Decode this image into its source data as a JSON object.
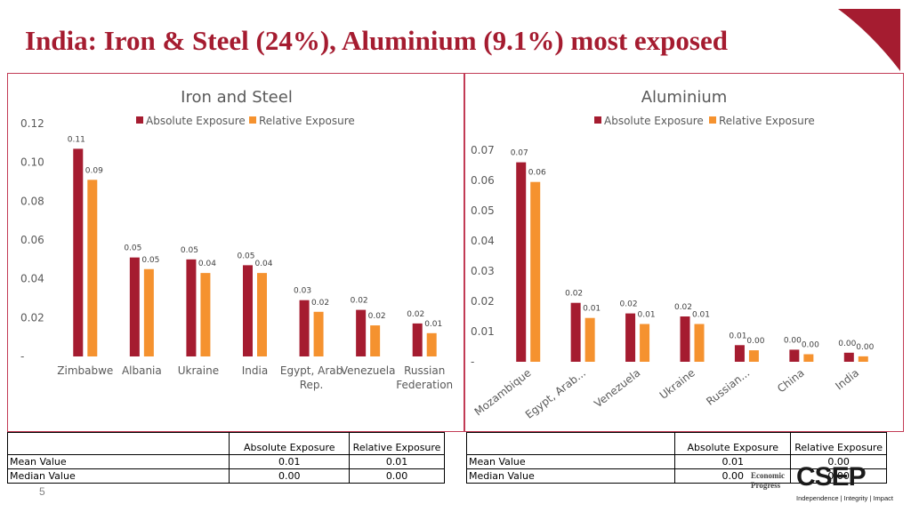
{
  "title": "India: Iron & Steel (24%), Aluminium (9.1%) most exposed",
  "page_number": "5",
  "colors": {
    "absolute": "#a51c30",
    "relative": "#f5922f",
    "title": "#a51c30"
  },
  "chart_data": [
    {
      "type": "bar",
      "title": "Iron and Steel",
      "categories": [
        [
          "Zimbabwe"
        ],
        [
          "Albania"
        ],
        [
          "Ukraine"
        ],
        [
          "India"
        ],
        [
          "Egypt, Arab",
          "Rep."
        ],
        [
          "Venezuela"
        ],
        [
          "Russian",
          "Federation"
        ]
      ],
      "series": [
        {
          "name": "Absolute Exposure",
          "values": [
            0.107,
            0.051,
            0.05,
            0.047,
            0.029,
            0.024,
            0.017
          ],
          "labels": [
            "0.11",
            "0.05",
            "0.05",
            "0.05",
            "0.03",
            "0.02",
            "0.02"
          ]
        },
        {
          "name": "Relative Exposure",
          "values": [
            0.091,
            0.045,
            0.043,
            0.043,
            0.023,
            0.016,
            0.012
          ],
          "labels": [
            "0.09",
            "0.05",
            "0.04",
            "0.04",
            "0.02",
            "0.02",
            "0.01"
          ]
        }
      ],
      "yticks": [
        "-",
        "0.02",
        "0.04",
        "0.06",
        "0.08",
        "0.10",
        "0.12"
      ],
      "ylim": [
        0,
        0.12
      ]
    },
    {
      "type": "bar",
      "title": "Aluminium",
      "categories": [
        "Mozambique",
        "Egypt, Arab...",
        "Venezuela",
        "Ukraine",
        "Russian...",
        "China",
        "India"
      ],
      "series": [
        {
          "name": "Absolute Exposure",
          "values": [
            0.066,
            0.0195,
            0.016,
            0.015,
            0.0055,
            0.004,
            0.003
          ],
          "labels": [
            "0.07",
            "0.02",
            "0.02",
            "0.02",
            "0.01",
            "0.00",
            "0.00"
          ]
        },
        {
          "name": "Relative Exposure",
          "values": [
            0.0595,
            0.0145,
            0.0125,
            0.0125,
            0.0038,
            0.0025,
            0.0018
          ],
          "labels": [
            "0.06",
            "0.01",
            "0.01",
            "0.01",
            "0.00",
            "0.00",
            "0.00"
          ]
        }
      ],
      "yticks": [
        "-",
        "0.01",
        "0.02",
        "0.03",
        "0.04",
        "0.05",
        "0.06",
        "0.07"
      ],
      "ylim": [
        0,
        0.07
      ]
    }
  ],
  "tables": {
    "left": {
      "headers": [
        "",
        "Absolute Exposure",
        "Relative Exposure"
      ],
      "rows": [
        {
          "label": "Mean Value",
          "absolute": "0.01",
          "relative": "0.01"
        },
        {
          "label": "Median Value",
          "absolute": "0.00",
          "relative": "0.00"
        }
      ]
    },
    "right": {
      "headers": [
        "",
        "Absolute Exposure",
        "Relative Exposure"
      ],
      "rows": [
        {
          "label": "Mean Value",
          "absolute": "0.01",
          "relative": "0.00"
        },
        {
          "label": "Median Value",
          "absolute": "0.00",
          "relative": "0.00"
        }
      ]
    }
  },
  "logo": {
    "word": "Economic\nProgress",
    "mark": "CSEP",
    "tagline": "Independence | Integrity | Impact"
  }
}
